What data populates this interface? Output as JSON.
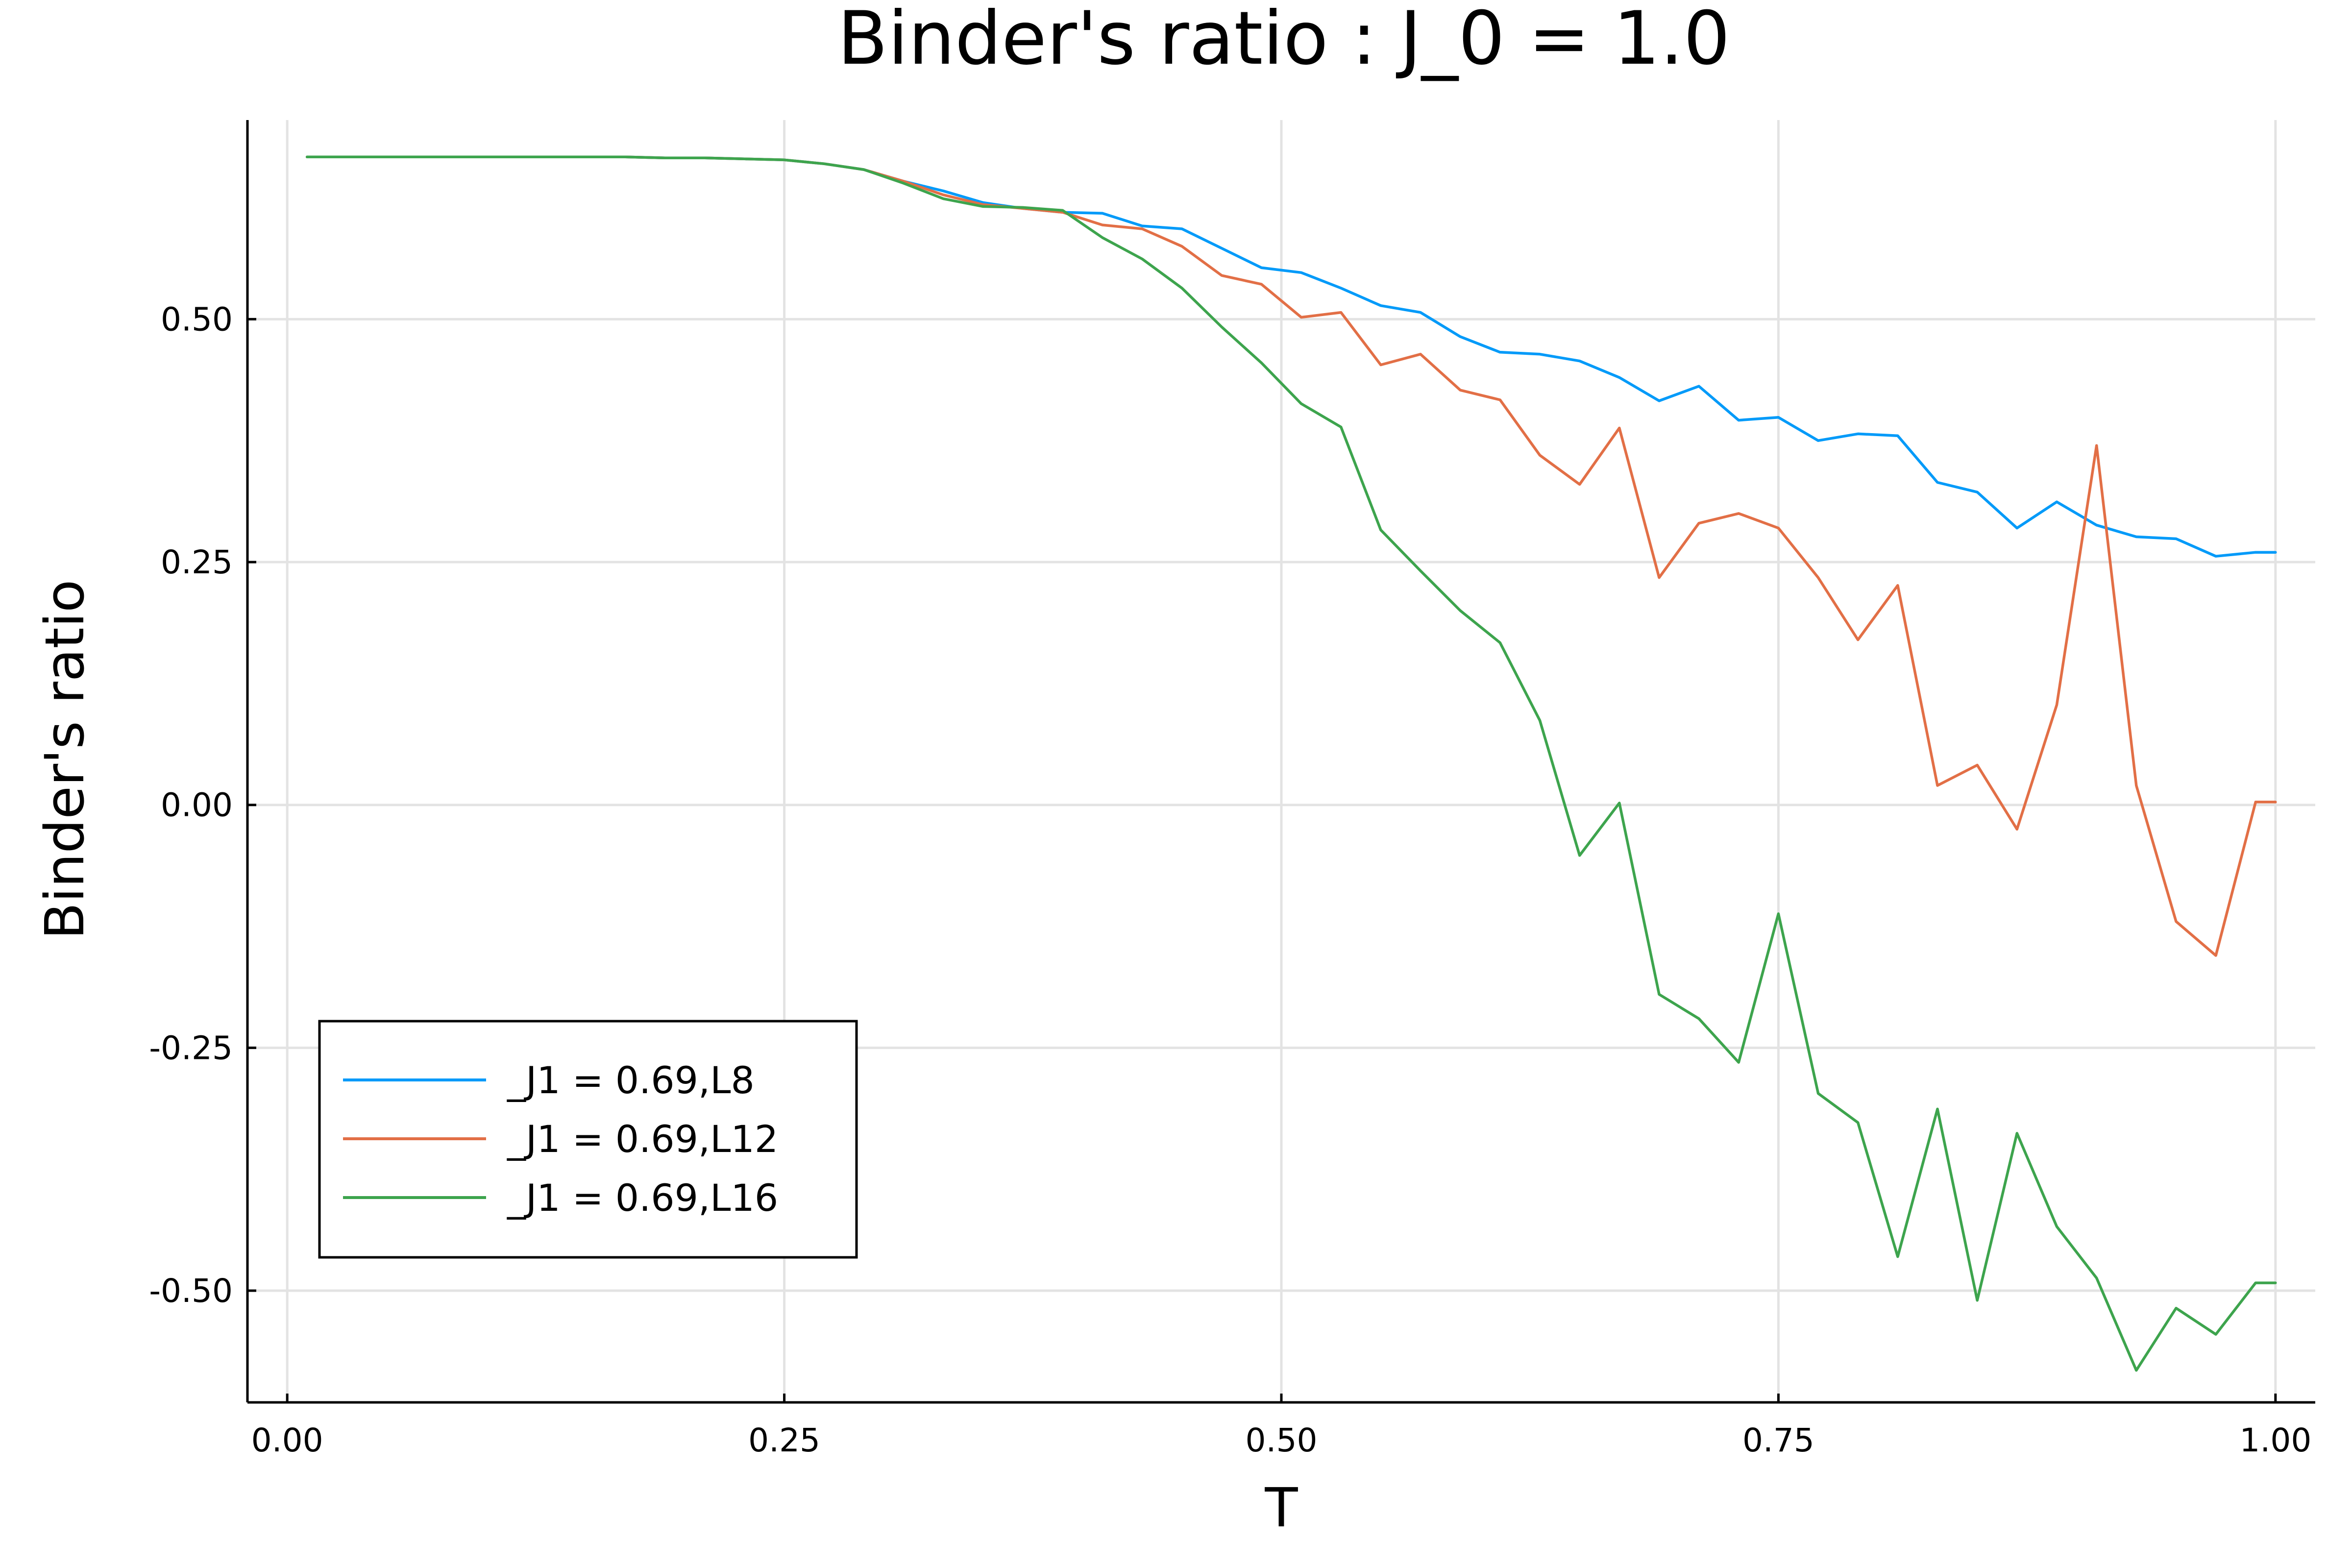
{
  "chart_data": {
    "type": "line",
    "title": "Binder's ratio : J_0 = 1.0",
    "xlabel": "T",
    "ylabel": "Binder's ratio",
    "xlim": [
      -0.02,
      1.02
    ],
    "ylim": [
      -0.615,
      0.705
    ],
    "xticks": [
      0.0,
      0.25,
      0.5,
      0.75,
      1.0
    ],
    "xtick_labels": [
      "0.00",
      "0.25",
      "0.50",
      "0.75",
      "1.00"
    ],
    "yticks": [
      -0.5,
      -0.25,
      0.0,
      0.25,
      0.5
    ],
    "ytick_labels": [
      "-0.50",
      "-0.25",
      "0.00",
      "0.25",
      "0.50"
    ],
    "grid": true,
    "legend_position": "bottom-left",
    "x": [
      0.01,
      0.03,
      0.05,
      0.07,
      0.09,
      0.11,
      0.13,
      0.15,
      0.17,
      0.19,
      0.21,
      0.23,
      0.25,
      0.27,
      0.29,
      0.31,
      0.33,
      0.35,
      0.37,
      0.39,
      0.41,
      0.43,
      0.45,
      0.47,
      0.49,
      0.51,
      0.53,
      0.55,
      0.57,
      0.59,
      0.61,
      0.63,
      0.65,
      0.67,
      0.69,
      0.71,
      0.73,
      0.75,
      0.77,
      0.79,
      0.81,
      0.83,
      0.85,
      0.87,
      0.89,
      0.91,
      0.93,
      0.95,
      0.97,
      0.99,
      1.0
    ],
    "series": [
      {
        "name": "_J1 = 0.69,L8",
        "color": "#009af9",
        "values": [
          0.667,
          0.667,
          0.667,
          0.667,
          0.667,
          0.667,
          0.667,
          0.667,
          0.667,
          0.666,
          0.666,
          0.665,
          0.664,
          0.66,
          0.654,
          0.642,
          0.632,
          0.62,
          0.614,
          0.61,
          0.609,
          0.596,
          0.593,
          0.573,
          0.553,
          0.548,
          0.532,
          0.514,
          0.507,
          0.482,
          0.466,
          0.464,
          0.457,
          0.44,
          0.416,
          0.431,
          0.396,
          0.399,
          0.375,
          0.382,
          0.38,
          0.332,
          0.322,
          0.285,
          0.312,
          0.288,
          0.276,
          0.274,
          0.256,
          0.26,
          0.26
        ]
      },
      {
        "name": "_J1 = 0.69,L12",
        "color": "#e26f46",
        "values": [
          0.667,
          0.667,
          0.667,
          0.667,
          0.667,
          0.667,
          0.667,
          0.667,
          0.667,
          0.666,
          0.666,
          0.665,
          0.664,
          0.66,
          0.654,
          0.642,
          0.628,
          0.618,
          0.614,
          0.61,
          0.597,
          0.593,
          0.575,
          0.545,
          0.536,
          0.502,
          0.507,
          0.453,
          0.464,
          0.427,
          0.417,
          0.36,
          0.33,
          0.388,
          0.234,
          0.29,
          0.3,
          0.285,
          0.234,
          0.17,
          0.226,
          0.02,
          0.041,
          -0.025,
          0.103,
          0.37,
          0.02,
          -0.12,
          -0.155,
          0.003,
          0.003
        ]
      },
      {
        "name": "_J1 = 0.69,L16",
        "color": "#3da44d",
        "values": [
          0.667,
          0.667,
          0.667,
          0.667,
          0.667,
          0.667,
          0.667,
          0.667,
          0.667,
          0.666,
          0.666,
          0.665,
          0.664,
          0.66,
          0.654,
          0.64,
          0.624,
          0.616,
          0.615,
          0.612,
          0.584,
          0.562,
          0.532,
          0.492,
          0.455,
          0.413,
          0.389,
          0.283,
          0.241,
          0.2,
          0.167,
          0.087,
          -0.052,
          0.002,
          -0.195,
          -0.22,
          -0.265,
          -0.112,
          -0.297,
          -0.327,
          -0.465,
          -0.313,
          -0.51,
          -0.338,
          -0.434,
          -0.487,
          -0.582,
          -0.518,
          -0.545,
          -0.492,
          -0.492
        ]
      }
    ]
  }
}
